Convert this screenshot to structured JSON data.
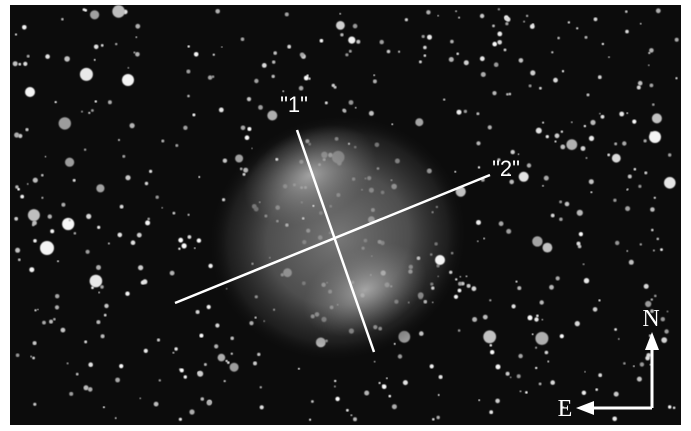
{
  "labels": {
    "line_1": "\"1\"",
    "line_2": "\"2\"",
    "north": "N",
    "east": "E"
  }
}
